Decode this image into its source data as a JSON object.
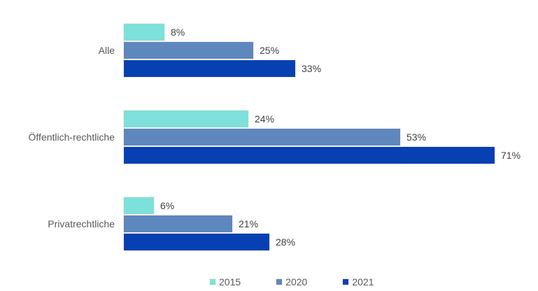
{
  "chart_data": {
    "type": "bar",
    "orientation": "horizontal",
    "title": "",
    "categories": [
      "Alle",
      "Öffentlich-rechtliche",
      "Privatrechtliche"
    ],
    "series": [
      {
        "name": "2015",
        "color": "#7DE0DB",
        "values": [
          8,
          24,
          6
        ]
      },
      {
        "name": "2020",
        "color": "#5E87BE",
        "values": [
          25,
          53,
          21
        ]
      },
      {
        "name": "2021",
        "color": "#0640B2",
        "values": [
          33,
          71,
          28
        ]
      }
    ],
    "value_suffix": "%",
    "data_labels_visible": true,
    "grid": false,
    "axes_visible": false,
    "legend": {
      "position": "bottom",
      "entries": [
        "2015",
        "2020",
        "2021"
      ]
    }
  },
  "colors": {
    "background": "#FFFFFF",
    "category_label": "#595959",
    "value_label": "#404040",
    "legend_label": "#595959",
    "bar_border": "#F7F0E2"
  }
}
